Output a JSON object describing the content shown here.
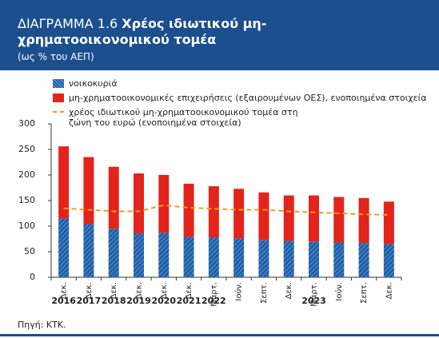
{
  "chart_data": {
    "type": "bar",
    "stacked": true,
    "figure_label": "ΔΙΑΓΡΑΜΜΑ 1.6",
    "title": "Χρέος ιδιωτικού μη-χρηματοοικονομικού τομέα",
    "subtitle": "(ως % του ΑΕΠ)",
    "source": "Πηγή: ΚΤΚ.",
    "categories": [
      "Δεκ.",
      "Δεκ.",
      "Δεκ.",
      "Δεκ.",
      "Δεκ.",
      "Δεκ.",
      "Μάρτ.",
      "Ιούν.",
      "Σεπτ.",
      "Δεκ.",
      "Μάρτ.",
      "Ιούν.",
      "Σεπτ.",
      "Δεκ."
    ],
    "category_years": [
      "2016",
      "2017",
      "2018",
      "2019",
      "2020",
      "2021",
      "2022",
      null,
      null,
      null,
      "2023",
      null,
      null,
      null
    ],
    "series": [
      {
        "name": "νοικοκυριά",
        "color": "#1f5fa8",
        "type": "bar",
        "values": [
          115,
          104,
          95,
          86,
          87,
          79,
          78,
          76,
          73,
          71,
          70,
          68,
          67,
          65
        ]
      },
      {
        "name": "μη-χρηματοοικονομικές επιχειρήσεις (εξαιρουμένων ΟΕΣ), ενοποιημένα στοιχεία",
        "color": "#e3241b",
        "type": "bar",
        "values": [
          141,
          131,
          121,
          117,
          113,
          104,
          100,
          97,
          93,
          89,
          90,
          89,
          88,
          83
        ]
      },
      {
        "name": "χρέος ιδιωτικού μη-χρηματοοικονομικού τομέα στη ζώνη του ευρώ (ενοποιημένα στοιχεία)",
        "color": "#f39a1e",
        "type": "line",
        "values": [
          135,
          132,
          129,
          129,
          141,
          136,
          134,
          132,
          132,
          129,
          127,
          125,
          123,
          122
        ]
      }
    ],
    "ylim": [
      0,
      300
    ],
    "yticks": [
      0,
      50,
      100,
      150,
      200,
      250,
      300
    ],
    "grid": false
  }
}
